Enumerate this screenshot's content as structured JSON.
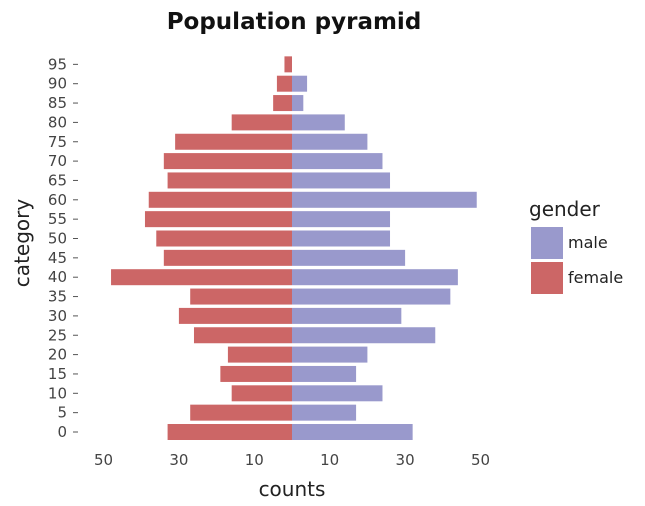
{
  "chart_data": {
    "type": "bar",
    "orientation": "horizontal",
    "title": "Population pyramid",
    "xlabel": "counts",
    "ylabel": "category",
    "categories": [
      "0",
      "5",
      "10",
      "15",
      "20",
      "25",
      "30",
      "35",
      "40",
      "45",
      "50",
      "55",
      "60",
      "65",
      "70",
      "75",
      "80",
      "85",
      "90",
      "95"
    ],
    "series": [
      {
        "name": "male",
        "color": "#9999cc",
        "values": [
          32,
          17,
          24,
          17,
          20,
          38,
          29,
          42,
          44,
          30,
          26,
          26,
          49,
          26,
          24,
          20,
          14,
          3,
          4,
          0
        ]
      },
      {
        "name": "female",
        "color": "#cc6666",
        "values": [
          33,
          27,
          16,
          19,
          17,
          26,
          30,
          27,
          48,
          34,
          36,
          39,
          38,
          33,
          34,
          31,
          16,
          5,
          4,
          2
        ]
      }
    ],
    "xticks": [
      "50",
      "30",
      "10",
      "10",
      "30",
      "50"
    ],
    "xtick_values": [
      -50,
      -30,
      -10,
      10,
      30,
      50
    ],
    "xlim": [
      -52,
      52
    ],
    "grid": false,
    "legend": {
      "title": "gender",
      "position": "right",
      "entries": [
        "male",
        "female"
      ]
    }
  }
}
